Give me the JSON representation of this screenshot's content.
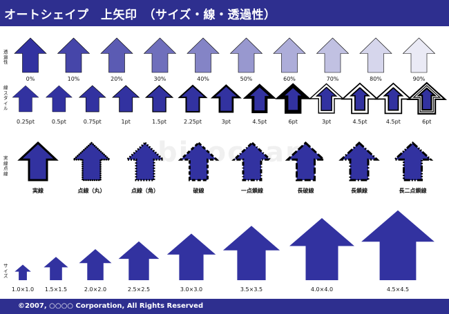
{
  "header": {
    "title": "オートシェイプ　上矢印　（サイズ・線・透過性）",
    "bg": "#2e2f8f"
  },
  "footer": {
    "copyright": "©2007, ○○○○ Corporation, All Rights Reserved"
  },
  "watermark": "bizocean",
  "arrow_color": "#3232a0",
  "rows": {
    "transparency": {
      "label": "透過性",
      "items": [
        {
          "label": "0%",
          "alpha": 0.0
        },
        {
          "label": "10%",
          "alpha": 0.1
        },
        {
          "label": "20%",
          "alpha": 0.2
        },
        {
          "label": "30%",
          "alpha": 0.3
        },
        {
          "label": "40%",
          "alpha": 0.4
        },
        {
          "label": "50%",
          "alpha": 0.5
        },
        {
          "label": "60%",
          "alpha": 0.6
        },
        {
          "label": "70%",
          "alpha": 0.7
        },
        {
          "label": "80%",
          "alpha": 0.8
        },
        {
          "label": "90%",
          "alpha": 0.9
        }
      ]
    },
    "linestyle": {
      "label": "線スタイル",
      "items": [
        {
          "label": "0.25pt",
          "weight": 0.25,
          "style": "single"
        },
        {
          "label": "0.5pt",
          "weight": 0.5,
          "style": "single"
        },
        {
          "label": "0.75pt",
          "weight": 0.75,
          "style": "single"
        },
        {
          "label": "1pt",
          "weight": 1,
          "style": "single"
        },
        {
          "label": "1.5pt",
          "weight": 1.5,
          "style": "single"
        },
        {
          "label": "2.25pt",
          "weight": 2.25,
          "style": "single"
        },
        {
          "label": "3pt",
          "weight": 3,
          "style": "single"
        },
        {
          "label": "4.5pt",
          "weight": 4.5,
          "style": "single"
        },
        {
          "label": "6pt",
          "weight": 6,
          "style": "single"
        },
        {
          "label": "3pt",
          "weight": 3,
          "style": "double"
        },
        {
          "label": "4.5pt",
          "weight": 4.5,
          "style": "double"
        },
        {
          "label": "4.5pt",
          "weight": 4.5,
          "style": "double-thick"
        },
        {
          "label": "6pt",
          "weight": 6,
          "style": "triple"
        }
      ]
    },
    "dash": {
      "label": "実線点線",
      "items": [
        {
          "label": "実線",
          "dash": "solid"
        },
        {
          "label": "点線（丸）",
          "dash": "round-dot"
        },
        {
          "label": "点線（角）",
          "dash": "square-dot"
        },
        {
          "label": "破線",
          "dash": "dash"
        },
        {
          "label": "一点鎖線",
          "dash": "dash-dot"
        },
        {
          "label": "長破線",
          "dash": "long-dash"
        },
        {
          "label": "長鎖線",
          "dash": "long-dash-dot"
        },
        {
          "label": "長二点鎖線",
          "dash": "long-dash-dot-dot"
        }
      ]
    },
    "size": {
      "label": "サイズ",
      "items": [
        {
          "label": "1.0×1.0",
          "scale": 1.0
        },
        {
          "label": "1.5×1.5",
          "scale": 1.5
        },
        {
          "label": "2.0×2.0",
          "scale": 2.0
        },
        {
          "label": "2.5×2.5",
          "scale": 2.5
        },
        {
          "label": "3.0×3.0",
          "scale": 3.0
        },
        {
          "label": "3.5×3.5",
          "scale": 3.5
        },
        {
          "label": "4.0×4.0",
          "scale": 4.0
        },
        {
          "label": "4.5×4.5",
          "scale": 4.5
        }
      ]
    }
  }
}
